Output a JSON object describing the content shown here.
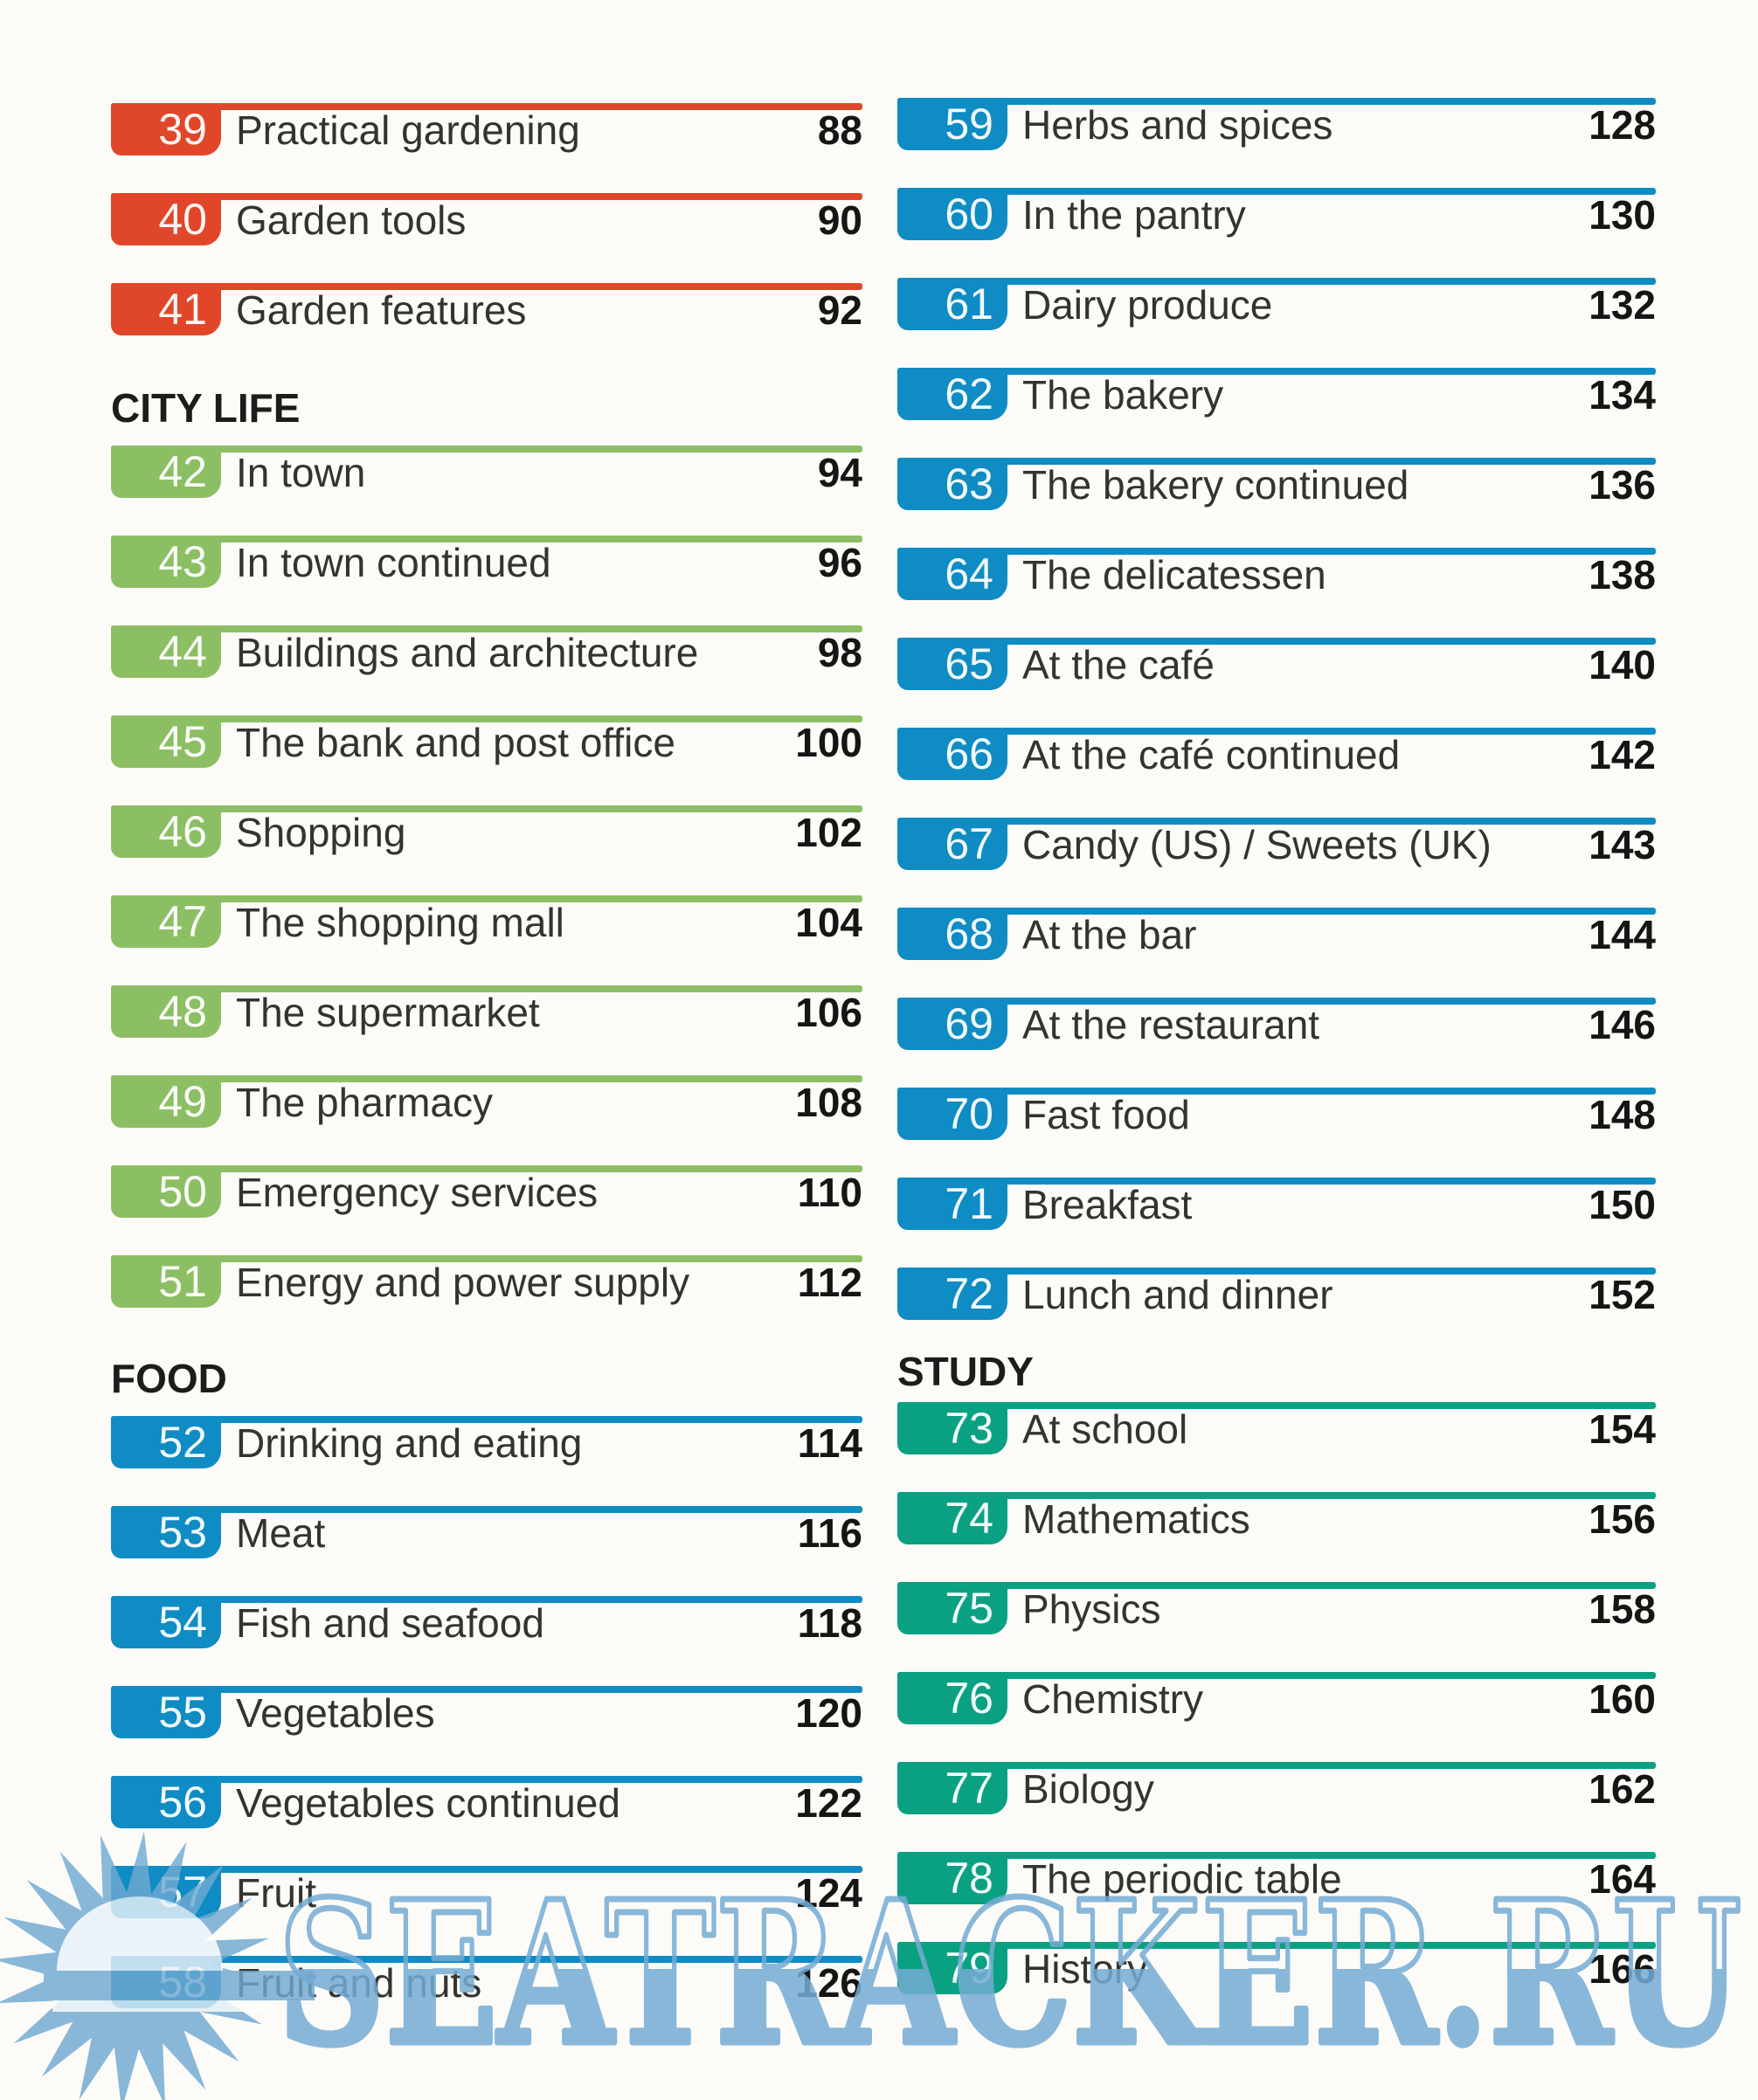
{
  "watermark": {
    "text": "SEATRACKER.RU",
    "color": "#74acd4"
  },
  "palette": {
    "red": "#e0472a",
    "green": "#8cbf63",
    "blue": "#0e8cc3",
    "teal": "#0aa183"
  },
  "columns": [
    {
      "sections": [
        {
          "header": null,
          "color": "#e0472a",
          "entries": [
            {
              "num": "39",
              "title": "Practical gardening",
              "page": "88"
            },
            {
              "num": "40",
              "title": "Garden tools",
              "page": "90"
            },
            {
              "num": "41",
              "title": "Garden features",
              "page": "92"
            }
          ]
        },
        {
          "header": "CITY LIFE",
          "color": "#8cbf63",
          "entries": [
            {
              "num": "42",
              "title": "In town",
              "page": "94"
            },
            {
              "num": "43",
              "title": "In town continued",
              "page": "96"
            },
            {
              "num": "44",
              "title": "Buildings and architecture",
              "page": "98"
            },
            {
              "num": "45",
              "title": "The bank and post office",
              "page": "100"
            },
            {
              "num": "46",
              "title": "Shopping",
              "page": "102"
            },
            {
              "num": "47",
              "title": "The shopping mall",
              "page": "104"
            },
            {
              "num": "48",
              "title": "The supermarket",
              "page": "106"
            },
            {
              "num": "49",
              "title": "The pharmacy",
              "page": "108"
            },
            {
              "num": "50",
              "title": "Emergency services",
              "page": "110"
            },
            {
              "num": "51",
              "title": "Energy and power supply",
              "page": "112"
            }
          ]
        },
        {
          "header": "FOOD",
          "color": "#0e8cc3",
          "entries": [
            {
              "num": "52",
              "title": "Drinking and eating",
              "page": "114"
            },
            {
              "num": "53",
              "title": "Meat",
              "page": "116"
            },
            {
              "num": "54",
              "title": "Fish and seafood",
              "page": "118"
            },
            {
              "num": "55",
              "title": "Vegetables",
              "page": "120"
            },
            {
              "num": "56",
              "title": "Vegetables continued",
              "page": "122"
            },
            {
              "num": "57",
              "title": "Fruit",
              "page": "124"
            },
            {
              "num": "58",
              "title": "Fruit and nuts",
              "page": "126"
            }
          ]
        }
      ]
    },
    {
      "sections": [
        {
          "header": null,
          "color": "#0e8cc3",
          "entries": [
            {
              "num": "59",
              "title": "Herbs and spices",
              "page": "128"
            },
            {
              "num": "60",
              "title": "In the pantry",
              "page": "130"
            },
            {
              "num": "61",
              "title": "Dairy produce",
              "page": "132"
            },
            {
              "num": "62",
              "title": "The bakery",
              "page": "134"
            },
            {
              "num": "63",
              "title": "The bakery continued",
              "page": "136"
            },
            {
              "num": "64",
              "title": "The delicatessen",
              "page": "138"
            },
            {
              "num": "65",
              "title": "At the café",
              "page": "140"
            },
            {
              "num": "66",
              "title": "At the café continued",
              "page": "142"
            },
            {
              "num": "67",
              "title": "Candy (US) / Sweets (UK)",
              "page": "143"
            },
            {
              "num": "68",
              "title": "At the bar",
              "page": "144"
            },
            {
              "num": "69",
              "title": "At the restaurant",
              "page": "146"
            },
            {
              "num": "70",
              "title": "Fast food",
              "page": "148"
            },
            {
              "num": "71",
              "title": "Breakfast",
              "page": "150"
            },
            {
              "num": "72",
              "title": "Lunch and dinner",
              "page": "152"
            }
          ]
        },
        {
          "header": "STUDY",
          "color": "#0aa183",
          "entries": [
            {
              "num": "73",
              "title": "At school",
              "page": "154"
            },
            {
              "num": "74",
              "title": "Mathematics",
              "page": "156"
            },
            {
              "num": "75",
              "title": "Physics",
              "page": "158"
            },
            {
              "num": "76",
              "title": "Chemistry",
              "page": "160"
            },
            {
              "num": "77",
              "title": "Biology",
              "page": "162"
            },
            {
              "num": "78",
              "title": "The periodic table",
              "page": "164"
            },
            {
              "num": "79",
              "title": "History",
              "page": "166"
            }
          ]
        }
      ]
    }
  ]
}
